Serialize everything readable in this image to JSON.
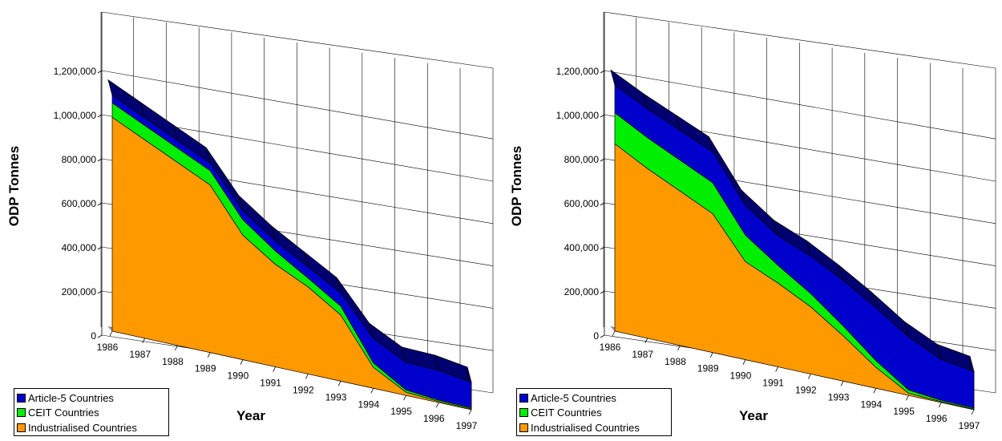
{
  "chart_data": [
    {
      "type": "area",
      "stacked": true,
      "perspective_3d": true,
      "x": [
        "1986",
        "1987",
        "1988",
        "1989",
        "1990",
        "1991",
        "1992",
        "1993",
        "1994",
        "1995",
        "1996",
        "1997"
      ],
      "xlabel": "Year",
      "ylabel": "ODP Tonnes",
      "ylim": [
        0,
        1200000
      ],
      "yticks": [
        "0",
        "200,000",
        "400,000",
        "600,000",
        "800,000",
        "1,000,000",
        "1,200,000"
      ],
      "grid": true,
      "legend_position": "bottom-left",
      "series": [
        {
          "name": "Industrialised Countries",
          "color": "#ff9900",
          "values": [
            970000,
            900000,
            830000,
            760000,
            565000,
            465000,
            395000,
            300000,
            95000,
            15000,
            5000,
            4000
          ]
        },
        {
          "name": "CEIT Countries",
          "color": "#00ee00",
          "values": [
            65000,
            65000,
            65000,
            65000,
            70000,
            60000,
            40000,
            40000,
            20000,
            10000,
            6000,
            5000
          ]
        },
        {
          "name": "Article-5 Countries",
          "color": "#0000cc",
          "values": [
            35000,
            35000,
            35000,
            35000,
            40000,
            45000,
            50000,
            60000,
            110000,
            125000,
            135000,
            115000
          ]
        }
      ]
    },
    {
      "type": "area",
      "stacked": true,
      "perspective_3d": true,
      "x": [
        "1986",
        "1987",
        "1988",
        "1989",
        "1990",
        "1991",
        "1992",
        "1993",
        "1994",
        "1995",
        "1996",
        "1997"
      ],
      "xlabel": "Year",
      "ylabel": "ODP Tonnes",
      "ylim": [
        0,
        1200000
      ],
      "yticks": [
        "0",
        "200,000",
        "400,000",
        "600,000",
        "800,000",
        "1,000,000",
        "1,200,000"
      ],
      "grid": true,
      "legend_position": "bottom-left",
      "series": [
        {
          "name": "Industrialised Countries",
          "color": "#ff9900",
          "values": [
            850000,
            770000,
            700000,
            630000,
            445000,
            380000,
            305000,
            205000,
            95000,
            10000,
            4000,
            3000
          ]
        },
        {
          "name": "CEIT Countries",
          "color": "#00ee00",
          "values": [
            140000,
            140000,
            140000,
            140000,
            120000,
            80000,
            60000,
            45000,
            30000,
            15000,
            6000,
            5000
          ]
        },
        {
          "name": "Article-5 Countries",
          "color": "#0000cc",
          "values": [
            125000,
            130000,
            135000,
            140000,
            135000,
            135000,
            170000,
            205000,
            240000,
            240000,
            185000,
            165000
          ]
        }
      ]
    }
  ]
}
